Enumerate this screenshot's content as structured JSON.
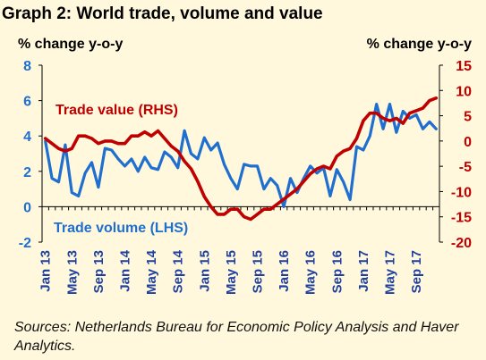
{
  "title": "Graph 2: World trade, volume and value",
  "axis_title_left": "% change y-o-y",
  "axis_title_right": "% change y-o-y",
  "source_note": "Sources: Netherlands Bureau for Economic Policy Analysis and Haver Analytics.",
  "colors": {
    "volume": "#1f6fd1",
    "value": "#c00000",
    "background": "#fff8dc"
  },
  "chart_data": {
    "type": "line",
    "grid": false,
    "x": [
      "Jan 13",
      "Feb 13",
      "Mar 13",
      "Apr 13",
      "May 13",
      "Jun 13",
      "Jul 13",
      "Aug 13",
      "Sep 13",
      "Oct 13",
      "Nov 13",
      "Dec 13",
      "Jan 14",
      "Feb 14",
      "Mar 14",
      "Apr 14",
      "May 14",
      "Jun 14",
      "Jul 14",
      "Aug 14",
      "Sep 14",
      "Oct 14",
      "Nov 14",
      "Dec 14",
      "Jan 15",
      "Feb 15",
      "Mar 15",
      "Apr 15",
      "May 15",
      "Jun 15",
      "Jul 15",
      "Aug 15",
      "Sep 15",
      "Oct 15",
      "Nov 15",
      "Dec 15",
      "Jan 16",
      "Feb 16",
      "Mar 16",
      "Apr 16",
      "May 16",
      "Jun 16",
      "Jul 16",
      "Aug 16",
      "Sep 16",
      "Oct 16",
      "Nov 16",
      "Dec 16",
      "Jan 17",
      "Feb 17",
      "Mar 17",
      "Apr 17",
      "May 17",
      "Jun 17",
      "Jul 17",
      "Aug 17",
      "Sep 17",
      "Oct 17",
      "Nov 17",
      "Dec 17"
    ],
    "x_tick_labels": [
      "Jan 13",
      "May 13",
      "Sep 13",
      "Jan 14",
      "May 14",
      "Sep 14",
      "Jan 15",
      "May 15",
      "Sep 15",
      "Jan 16",
      "May 16",
      "Sep 16",
      "Jan 17",
      "May 17",
      "Sep 17"
    ],
    "y_left": {
      "label": "% change y-o-y",
      "range": [
        -2,
        8
      ],
      "ticks": [
        -2,
        0,
        2,
        4,
        6,
        8
      ]
    },
    "y_right": {
      "label": "% change y-o-y",
      "range": [
        -20,
        15
      ],
      "ticks": [
        -20,
        -15,
        -10,
        -5,
        0,
        5,
        10,
        15
      ]
    },
    "series": [
      {
        "name": "Trade volume (LHS)",
        "axis": "left",
        "values": [
          3.7,
          1.6,
          1.4,
          3.5,
          0.8,
          0.6,
          1.9,
          2.5,
          1.1,
          3.3,
          3.2,
          2.7,
          2.3,
          2.7,
          2.0,
          2.8,
          2.2,
          2.1,
          3.1,
          2.8,
          2.2,
          4.3,
          3.0,
          2.7,
          3.9,
          3.2,
          3.6,
          2.4,
          1.6,
          1.0,
          2.4,
          2.3,
          2.3,
          1.0,
          1.6,
          1.2,
          0.0,
          1.6,
          0.8,
          1.6,
          2.3,
          1.9,
          2.2,
          0.6,
          2.1,
          1.4,
          0.4,
          3.4,
          3.2,
          4.0,
          5.8,
          4.4,
          5.8,
          4.2,
          5.4,
          5.0,
          5.2,
          4.4,
          4.8,
          4.4
        ]
      },
      {
        "name": "Trade value (RHS)",
        "axis": "right",
        "values": [
          0.5,
          -0.5,
          -1.5,
          -2.0,
          -1.5,
          1.0,
          1.0,
          0.5,
          -0.5,
          0.0,
          0.0,
          -0.5,
          -0.5,
          1.0,
          1.0,
          1.8,
          1.0,
          2.0,
          0.5,
          -1.0,
          -2.0,
          -4.0,
          -5.5,
          -8.0,
          -11.0,
          -13.0,
          -14.5,
          -14.5,
          -13.5,
          -13.5,
          -15.0,
          -15.5,
          -14.5,
          -13.5,
          -13.5,
          -12.5,
          -11.5,
          -10.5,
          -9.5,
          -8.0,
          -6.5,
          -5.5,
          -5.0,
          -5.5,
          -3.0,
          -2.0,
          -1.5,
          0.5,
          4.0,
          5.5,
          5.5,
          4.5,
          4.0,
          4.5,
          3.5,
          5.5,
          6.0,
          6.5,
          8.0,
          8.5
        ]
      }
    ],
    "annotations": [
      "Trade value (RHS)",
      "Trade volume (LHS)"
    ]
  }
}
